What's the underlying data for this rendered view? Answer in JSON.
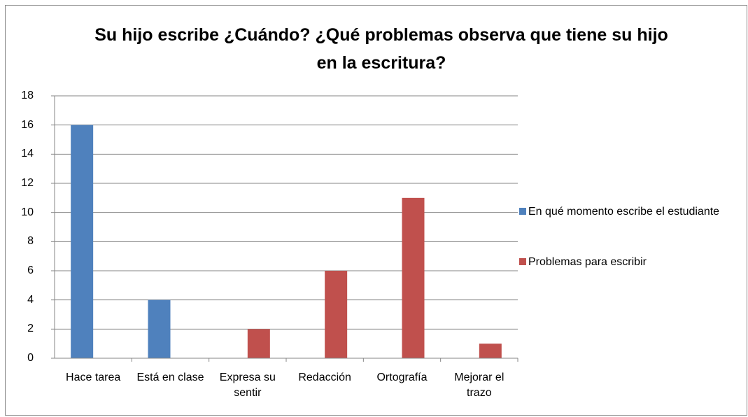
{
  "chart_data": {
    "type": "bar",
    "title": "Su hijo escribe ¿Cuándo? ¿Qué problemas observa que tiene su hijo en la escritura?",
    "categories": [
      "Hace tarea",
      "Está en clase",
      "Expresa su sentir",
      "Redacción",
      "Ortografía",
      "Mejorar el trazo"
    ],
    "series": [
      {
        "name": "En qué momento escribe el estudiante",
        "color": "#4f81bd",
        "values": [
          16,
          4,
          null,
          null,
          null,
          null
        ]
      },
      {
        "name": "Problemas para escribir",
        "color": "#c0504d",
        "values": [
          null,
          null,
          2,
          6,
          11,
          1
        ]
      }
    ],
    "ylim": [
      0,
      18
    ],
    "yticks": [
      0,
      2,
      4,
      6,
      8,
      10,
      12,
      14,
      16,
      18
    ],
    "grid": true,
    "legend": "right"
  }
}
